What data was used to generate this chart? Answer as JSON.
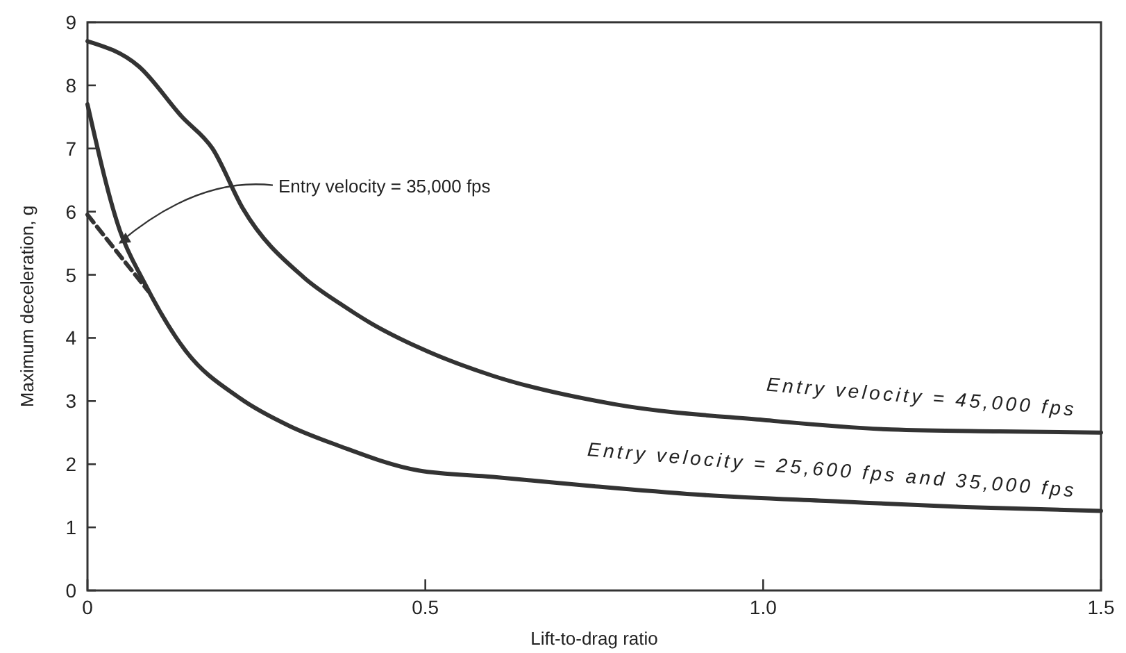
{
  "chart_data": {
    "type": "line",
    "xlabel": "Lift-to-drag ratio",
    "ylabel": "Maximum deceleration, g",
    "xlim": [
      0,
      1.5
    ],
    "ylim": [
      0,
      9
    ],
    "xticks": [
      0,
      0.5,
      {
        "value": 1,
        "label": "1.0"
      },
      1.5
    ],
    "yticks": [
      0,
      1,
      2,
      3,
      4,
      5,
      6,
      7,
      8,
      9
    ],
    "grid": false,
    "legend": false,
    "marker": "none",
    "series": [
      {
        "name": "Entry velocity = 45,000 fps",
        "color": "#333333",
        "line_style": "solid",
        "x": [
          0,
          0.076,
          0.14,
          0.185,
          0.23,
          0.32,
          0.38,
          0.42,
          0.49,
          0.6,
          0.78,
          1.0,
          1.19,
          1.35,
          1.5
        ],
        "values": [
          8.7,
          8.3,
          7.5,
          7.0,
          6.05,
          4.96,
          4.5,
          4.23,
          3.85,
          3.4,
          2.95,
          2.7,
          2.55,
          2.52,
          2.5
        ]
      },
      {
        "name": "Entry velocity = 25,600 fps and 35,000 fps",
        "color": "#333333",
        "line_style": "solid",
        "x": [
          0,
          0.048,
          0.083,
          0.145,
          0.225,
          0.3,
          0.37,
          0.49,
          0.6,
          0.75,
          0.9,
          1.11,
          1.3,
          1.5
        ],
        "values": [
          7.7,
          5.7,
          4.9,
          3.8,
          3.05,
          2.6,
          2.3,
          1.9,
          1.8,
          1.65,
          1.52,
          1.41,
          1.32,
          1.26
        ]
      },
      {
        "color": "#333333",
        "line_style": "dashed",
        "x": [
          0,
          0.09
        ],
        "values": [
          5.95,
          4.74
        ]
      }
    ],
    "annotations": [
      {
        "text": "Entry velocity = 35,000 fps",
        "x": 0.04,
        "y": 5.45
      }
    ]
  }
}
